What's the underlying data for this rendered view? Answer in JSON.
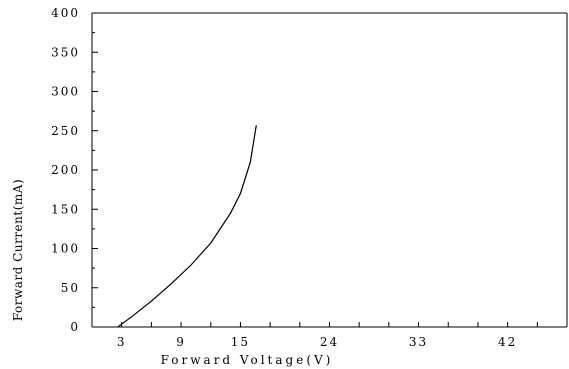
{
  "chart_data": {
    "type": "line",
    "title": "",
    "xlabel": "Forward Voltage(V)",
    "ylabel": "Forward Current(mA)",
    "xlim": [
      0,
      48
    ],
    "ylim": [
      0,
      400
    ],
    "x_ticks": [
      3,
      9,
      15,
      24,
      33,
      42
    ],
    "y_ticks": [
      0,
      50,
      100,
      150,
      200,
      250,
      300,
      350,
      400
    ],
    "grid": false,
    "series": [
      {
        "x": [
          2.6,
          4.0,
          6.0,
          8.0,
          10.0,
          12.0,
          14.0,
          15.0,
          16.0,
          16.6
        ],
        "y": [
          0,
          13,
          33,
          55,
          79,
          107,
          145,
          170,
          210,
          257
        ]
      }
    ]
  }
}
